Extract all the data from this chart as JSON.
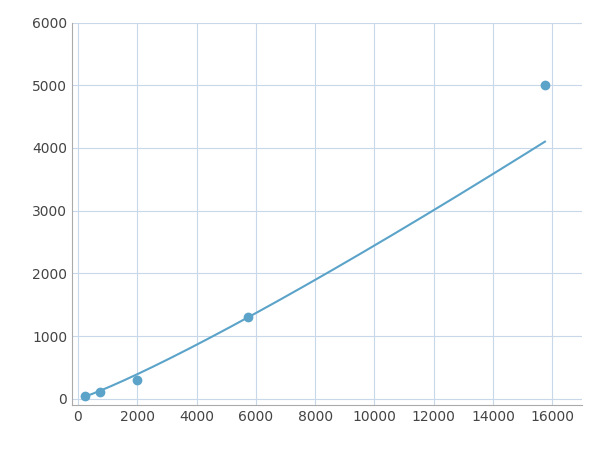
{
  "x": [
    250,
    750,
    2000,
    5750,
    15750
  ],
  "y": [
    50,
    100,
    300,
    1300,
    5000
  ],
  "line_color": "#5ba3c9",
  "marker_color": "#5ba3c9",
  "marker_size": 6,
  "line_width": 1.5,
  "xlim": [
    -200,
    17000
  ],
  "ylim": [
    -100,
    6000
  ],
  "xticks": [
    0,
    2000,
    4000,
    6000,
    8000,
    10000,
    12000,
    14000,
    16000
  ],
  "yticks": [
    0,
    1000,
    2000,
    3000,
    4000,
    5000,
    6000
  ],
  "grid": true,
  "background_color": "#ffffff",
  "figure_width": 6.0,
  "figure_height": 4.5,
  "dpi": 100
}
